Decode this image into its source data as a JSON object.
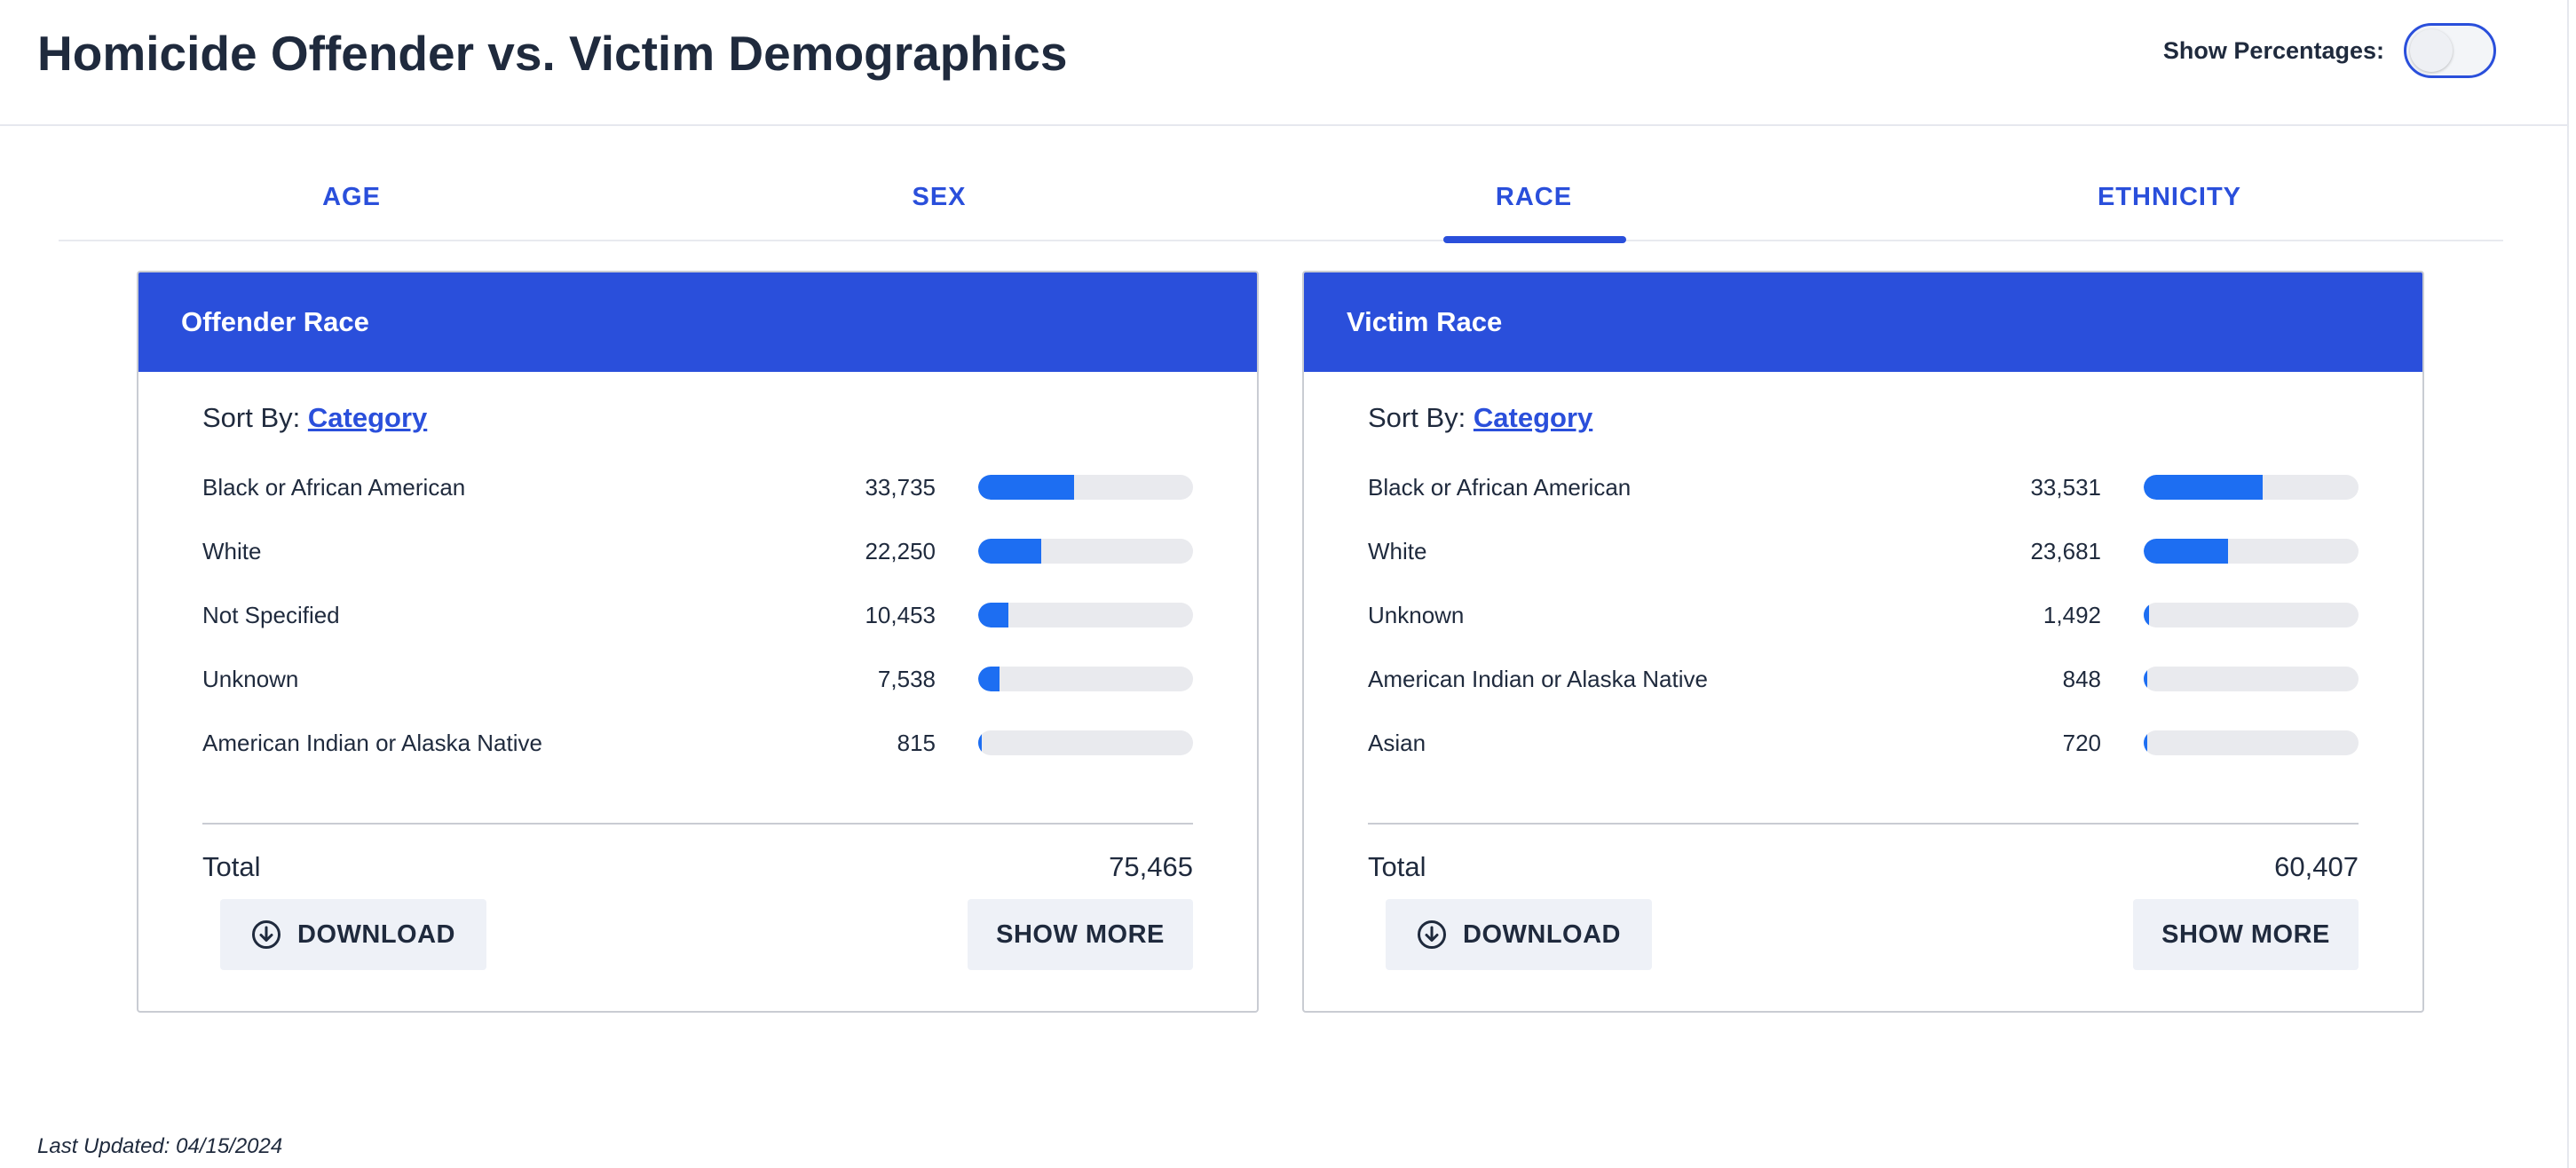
{
  "header": {
    "title": "Homicide Offender vs. Victim Demographics",
    "show_percentages_label": "Show Percentages:",
    "show_percentages_on": false
  },
  "tabs": [
    {
      "label": "AGE",
      "active": false
    },
    {
      "label": "SEX",
      "active": false
    },
    {
      "label": "RACE",
      "active": true
    },
    {
      "label": "ETHNICITY",
      "active": false
    }
  ],
  "colors": {
    "accent": "#2a4fdb",
    "bar": "#1d6ef2",
    "bar_track": "#e9eaee"
  },
  "offender": {
    "title": "Offender Race",
    "sort_prefix": "Sort By:",
    "sort_value": "Category",
    "rows": [
      {
        "label": "Black or African American",
        "value": "33,735",
        "fraction": 0.447
      },
      {
        "label": "White",
        "value": "22,250",
        "fraction": 0.295
      },
      {
        "label": "Not Specified",
        "value": "10,453",
        "fraction": 0.139
      },
      {
        "label": "Unknown",
        "value": "7,538",
        "fraction": 0.1
      },
      {
        "label": "American Indian or Alaska Native",
        "value": "815",
        "fraction": 0.011
      }
    ],
    "total_label": "Total",
    "total_value": "75,465",
    "download_label": "DOWNLOAD",
    "show_more_label": "SHOW MORE"
  },
  "victim": {
    "title": "Victim Race",
    "sort_prefix": "Sort By:",
    "sort_value": "Category",
    "rows": [
      {
        "label": "Black or African American",
        "value": "33,531",
        "fraction": 0.555
      },
      {
        "label": "White",
        "value": "23,681",
        "fraction": 0.392
      },
      {
        "label": "Unknown",
        "value": "1,492",
        "fraction": 0.025
      },
      {
        "label": "American Indian or Alaska Native",
        "value": "848",
        "fraction": 0.014
      },
      {
        "label": "Asian",
        "value": "720",
        "fraction": 0.012
      }
    ],
    "total_label": "Total",
    "total_value": "60,407",
    "download_label": "DOWNLOAD",
    "show_more_label": "SHOW MORE"
  },
  "footer": {
    "last_updated": "Last Updated: 04/15/2024"
  }
}
